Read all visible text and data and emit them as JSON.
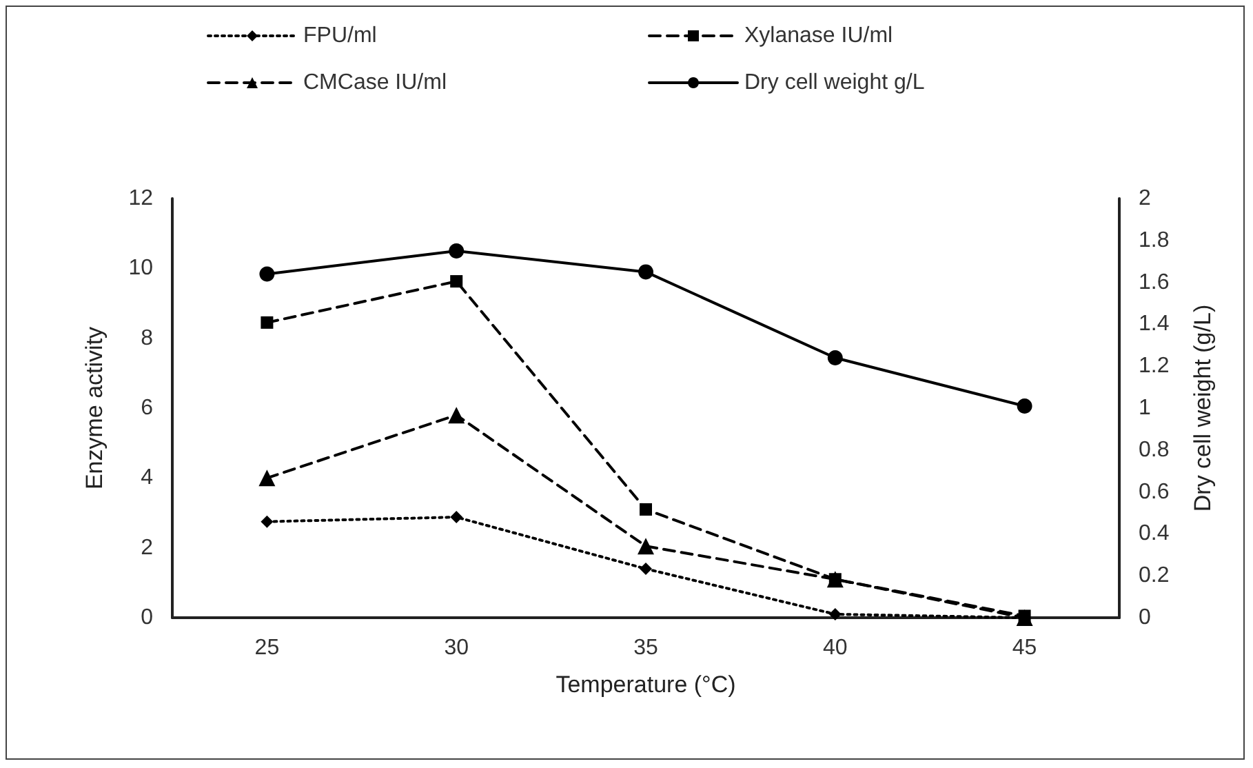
{
  "chart_data": {
    "type": "line",
    "xlabel": "Temperature (°C)",
    "ylabel": "Enzyme activity",
    "y2label": "Dry cell weight (g/L)",
    "categories": [
      "25",
      "30",
      "35",
      "40",
      "45"
    ],
    "series": [
      {
        "name": "FPU/ml",
        "color": "#000000",
        "marker": "diamond",
        "line_style": "dotted",
        "values": [
          2.75,
          2.88,
          1.4,
          0.1,
          0
        ]
      },
      {
        "name": "CMCase IU/ml",
        "color": "#000000",
        "marker": "triangle",
        "line_style": "dashed",
        "values": [
          4.0,
          5.8,
          2.05,
          1.1,
          0
        ]
      },
      {
        "name": "Xylanase IU/ml",
        "color": "#000000",
        "marker": "square",
        "line_style": "dashed",
        "values": [
          8.45,
          9.63,
          3.1,
          1.1,
          0.05
        ]
      },
      {
        "name": "Dry cell weight g/L",
        "color": "#000000",
        "marker": "circle",
        "line_style": "solid",
        "axis": "y2",
        "values": [
          1.64,
          1.75,
          1.65,
          1.24,
          1.01
        ]
      }
    ],
    "ylim": [
      0,
      12
    ],
    "yticks": [
      0,
      2,
      4,
      6,
      8,
      10,
      12
    ],
    "y2lim": [
      0,
      2
    ],
    "y2ticks": [
      0,
      0.2,
      0.4,
      0.6,
      0.8,
      1,
      1.2,
      1.4,
      1.6,
      1.8,
      2
    ],
    "grid": false,
    "legend": "top"
  }
}
